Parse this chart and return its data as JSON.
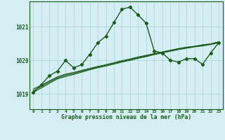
{
  "title": "Graphe pression niveau de la mer (hPa)",
  "background_color": "#d4eef4",
  "grid_color": "#aad4d4",
  "line_color": "#1a5c1a",
  "x_ticks": [
    0,
    1,
    2,
    3,
    4,
    5,
    6,
    7,
    8,
    9,
    10,
    11,
    12,
    13,
    14,
    15,
    16,
    17,
    18,
    19,
    20,
    21,
    22,
    23
  ],
  "y_ticks": [
    1019,
    1020,
    1021
  ],
  "ylim": [
    1018.55,
    1021.75
  ],
  "xlim": [
    -0.5,
    23.5
  ],
  "series1_x": [
    0,
    1,
    2,
    3,
    4,
    5,
    6,
    7,
    8,
    9,
    10,
    11,
    12,
    13,
    14,
    15,
    16,
    17,
    18,
    19,
    20,
    21,
    22,
    23
  ],
  "series1_y": [
    1019.05,
    1019.28,
    1019.55,
    1019.68,
    1020.0,
    1019.78,
    1019.87,
    1020.18,
    1020.52,
    1020.72,
    1021.12,
    1021.52,
    1021.58,
    1021.35,
    1021.1,
    1020.28,
    1020.22,
    1020.0,
    1019.95,
    1020.05,
    1020.05,
    1019.88,
    1020.22,
    1020.52
  ],
  "series2_x": [
    0,
    1,
    2,
    3,
    4,
    5,
    6,
    7,
    8,
    9,
    10,
    11,
    12,
    13,
    14,
    15,
    16,
    17,
    18,
    19,
    20,
    21,
    22,
    23
  ],
  "series2_y": [
    1019.05,
    1019.18,
    1019.32,
    1019.45,
    1019.52,
    1019.58,
    1019.65,
    1019.72,
    1019.78,
    1019.83,
    1019.89,
    1019.95,
    1020.0,
    1020.06,
    1020.11,
    1020.17,
    1020.22,
    1020.27,
    1020.32,
    1020.36,
    1020.4,
    1020.43,
    1020.47,
    1020.52
  ],
  "series3_x": [
    0,
    1,
    2,
    3,
    4,
    5,
    6,
    7,
    8,
    9,
    10,
    11,
    12,
    13,
    14,
    15,
    16,
    17,
    18,
    19,
    20,
    21,
    22,
    23
  ],
  "series3_y": [
    1019.1,
    1019.22,
    1019.36,
    1019.48,
    1019.56,
    1019.61,
    1019.68,
    1019.74,
    1019.8,
    1019.86,
    1019.91,
    1019.97,
    1020.02,
    1020.08,
    1020.13,
    1020.18,
    1020.24,
    1020.29,
    1020.34,
    1020.38,
    1020.41,
    1020.45,
    1020.48,
    1020.54
  ],
  "series4_x": [
    0,
    1,
    2,
    3,
    4,
    5,
    6,
    7,
    8,
    9,
    10,
    11,
    12,
    13,
    14,
    15,
    16,
    17,
    18,
    19,
    20,
    21,
    22,
    23
  ],
  "series4_y": [
    1019.15,
    1019.26,
    1019.39,
    1019.51,
    1019.59,
    1019.64,
    1019.7,
    1019.76,
    1019.82,
    1019.87,
    1019.93,
    1019.99,
    1020.04,
    1020.1,
    1020.15,
    1020.2,
    1020.25,
    1020.3,
    1020.35,
    1020.39,
    1020.42,
    1020.46,
    1020.49,
    1020.55
  ]
}
